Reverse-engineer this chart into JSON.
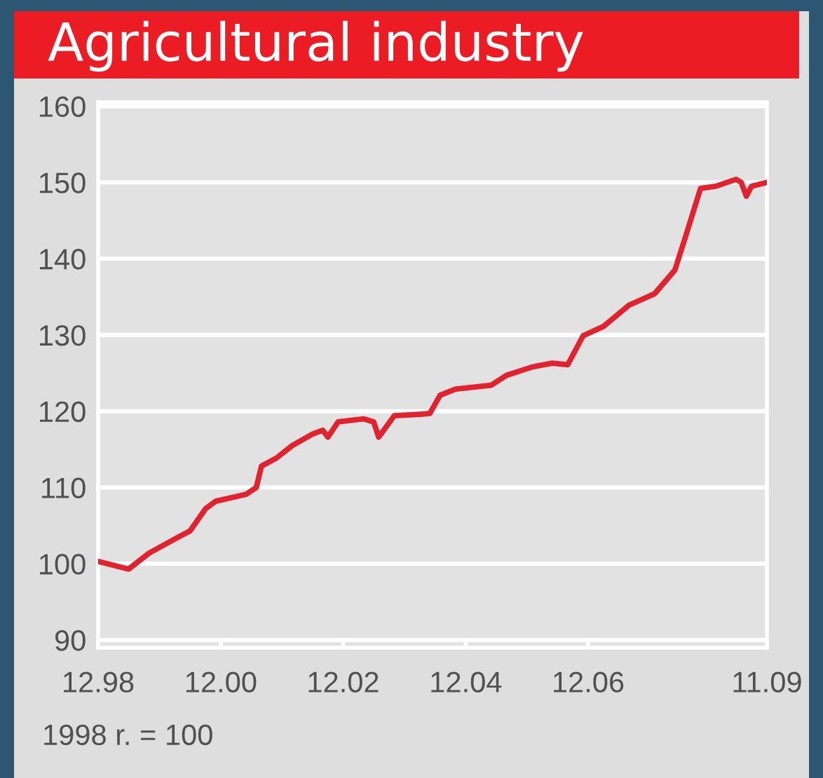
{
  "chart_data": {
    "type": "line",
    "title": "Agricultural industry",
    "x": [
      "1998-12",
      "1999-06",
      "1999-10",
      "2000-04",
      "2000-06",
      "2000-09",
      "2000-11",
      "2001-05",
      "2001-07",
      "2001-08",
      "2001-11",
      "2002-02",
      "2002-06",
      "2002-08",
      "2002-09",
      "2002-11",
      "2003-04",
      "2003-06",
      "2003-07",
      "2003-10",
      "2004-03",
      "2004-05",
      "2004-07",
      "2004-10",
      "2005-05",
      "2005-08",
      "2006-01",
      "2006-05",
      "2006-08",
      "2006-11",
      "2007-03",
      "2007-08",
      "2008-01",
      "2008-05",
      "2008-07",
      "2008-10",
      "2009-01",
      "2009-05",
      "2009-06",
      "2009-07",
      "2009-08",
      "2009-11"
    ],
    "series": [
      {
        "color": "#e0232e",
        "values": [
          100.3,
          99.3,
          101.4,
          103.6,
          104.3,
          107.2,
          108.2,
          109.1,
          110,
          112.8,
          113.9,
          115.5,
          117,
          117.5,
          116.6,
          118.6,
          119,
          118.6,
          116.6,
          119.4,
          119.6,
          119.7,
          122.1,
          122.9,
          123.4,
          124.7,
          125.8,
          126.3,
          126.1,
          129.9,
          131.1,
          133.9,
          135.4,
          138.5,
          142.7,
          149.2,
          149.5,
          150.4,
          150,
          148.2,
          149.5,
          150
        ]
      }
    ],
    "xlim": [
      "1998-12",
      "2009-11"
    ],
    "xticks": [
      {
        "value": "1998-12",
        "label": "12.98"
      },
      {
        "value": "2000-12",
        "label": "12.00"
      },
      {
        "value": "2002-12",
        "label": "12.02"
      },
      {
        "value": "2004-12",
        "label": "12.04"
      },
      {
        "value": "2006-12",
        "label": "12.06"
      },
      {
        "value": "2009-11",
        "label": "11.09"
      }
    ],
    "ylim": [
      89,
      160.5
    ],
    "yticks": [
      90,
      100,
      110,
      120,
      130,
      140,
      150,
      160
    ],
    "grid": "y",
    "marker": "none",
    "line_style": "solid",
    "annotations": [
      "1998 r. = 100"
    ]
  }
}
